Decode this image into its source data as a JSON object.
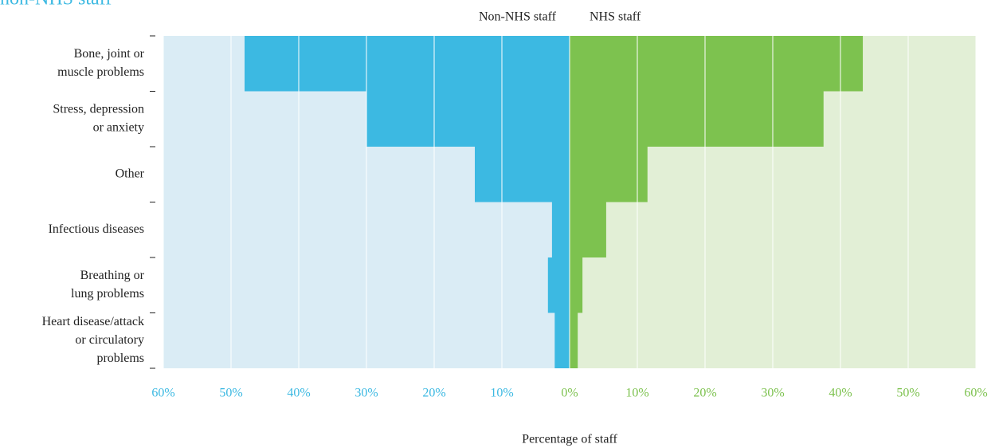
{
  "chart_data": {
    "type": "back_to_back_bar",
    "title": "non-NHS staff",
    "xlabel": "Percentage of staff",
    "categories": [
      [
        "Bone, joint or",
        "muscle problems"
      ],
      [
        "Stress, depression",
        "or anxiety"
      ],
      [
        "Other"
      ],
      [
        "Infectious diseases"
      ],
      [
        "Breathing or",
        "lung problems"
      ],
      [
        "Heart disease/attack",
        "or circulatory",
        "problems"
      ]
    ],
    "series": [
      {
        "name": "Non-NHS staff",
        "color": "#3cb9e2",
        "background": "#daecf5",
        "tick_color": "#3cb9e2",
        "values": [
          48.0,
          30.0,
          14.0,
          2.6,
          3.2,
          2.2
        ]
      },
      {
        "name": "NHS staff",
        "color": "#7dc24f",
        "background": "#e2efd6",
        "tick_color": "#7dc24f",
        "axis": "x2",
        "values": [
          43.3,
          37.5,
          11.5,
          5.4,
          1.9,
          1.2
        ]
      }
    ],
    "xlim": [
      0,
      60
    ],
    "x_reversed": true,
    "xticks": [
      {
        "value": 60,
        "label": "60%"
      },
      {
        "value": 50,
        "label": "50%"
      },
      {
        "value": 40,
        "label": "40%"
      },
      {
        "value": 30,
        "label": "30%"
      },
      {
        "value": 20,
        "label": "20%"
      },
      {
        "value": 10,
        "label": "10%"
      }
    ],
    "x2lim": [
      0,
      60
    ],
    "x2ticks": [
      {
        "value": 0,
        "label": "0%"
      },
      {
        "value": 10,
        "label": "10%"
      },
      {
        "value": 20,
        "label": "20%"
      },
      {
        "value": 30,
        "label": "30%"
      },
      {
        "value": 40,
        "label": "40%"
      },
      {
        "value": 50,
        "label": "50%"
      },
      {
        "value": 60,
        "label": "60%"
      }
    ],
    "grid": true
  }
}
